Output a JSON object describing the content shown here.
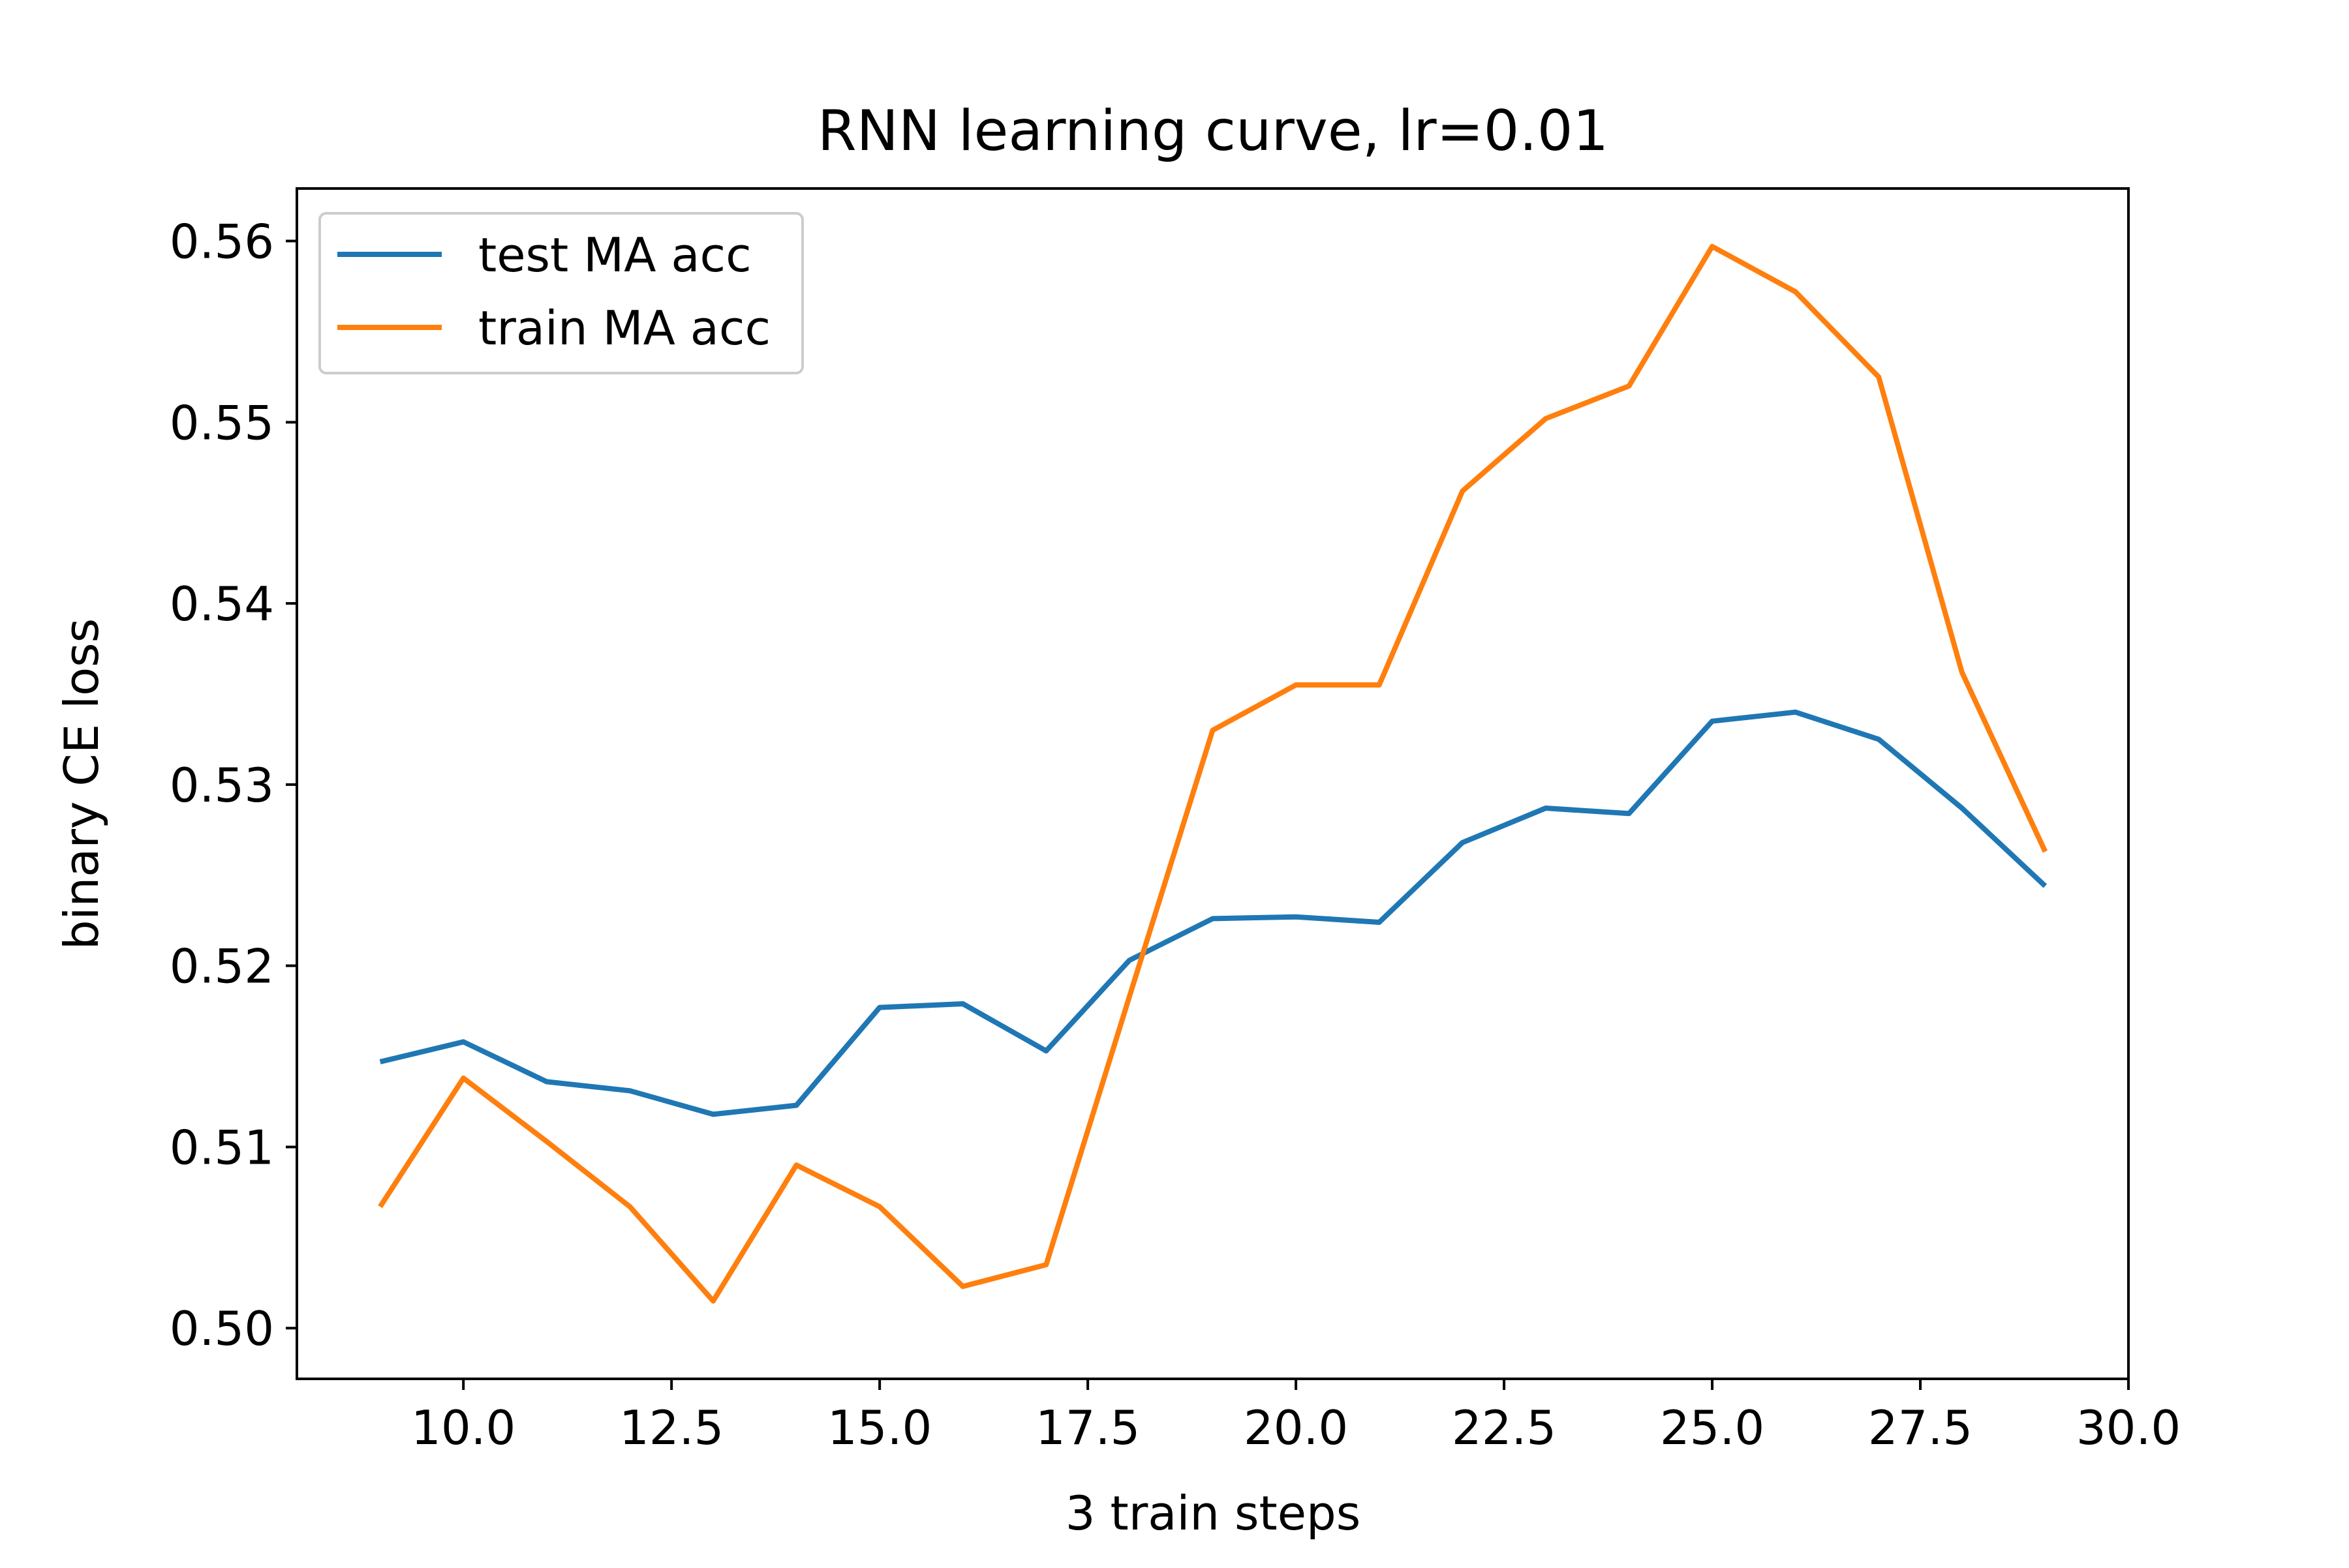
{
  "chart_data": {
    "type": "line",
    "title": "RNN learning curve, lr=0.01",
    "xlabel": "3 train steps",
    "ylabel": "binary CE loss",
    "xlim": [
      8.0,
      30.0
    ],
    "ylim": [
      0.4972,
      0.5629
    ],
    "xticks": [
      10.0,
      12.5,
      15.0,
      17.5,
      20.0,
      22.5,
      25.0,
      27.5,
      30.0
    ],
    "xtick_labels": [
      "10.0",
      "12.5",
      "15.0",
      "17.5",
      "20.0",
      "22.5",
      "25.0",
      "27.5",
      "30.0"
    ],
    "yticks": [
      0.5,
      0.51,
      0.52,
      0.53,
      0.54,
      0.55,
      0.56
    ],
    "ytick_labels": [
      "0.50",
      "0.51",
      "0.52",
      "0.53",
      "0.54",
      "0.55",
      "0.56"
    ],
    "grid": false,
    "legend_position": "upper-left",
    "x": [
      9,
      10,
      11,
      12,
      13,
      14,
      15,
      16,
      17,
      18,
      19,
      20,
      21,
      22,
      23,
      24,
      25,
      26,
      27,
      28,
      29
    ],
    "series": [
      {
        "name": "test MA acc",
        "color": "#1f77b4",
        "values": [
          0.5147,
          0.5158,
          0.5136,
          0.5131,
          0.5118,
          0.5123,
          0.5177,
          0.5179,
          0.5153,
          0.5203,
          0.5226,
          0.5227,
          0.5224,
          0.5268,
          0.5287,
          0.5284,
          0.5335,
          0.534,
          0.5325,
          0.5287,
          0.5244
        ]
      },
      {
        "name": "train MA acc",
        "color": "#ff7f0e",
        "values": [
          0.5067,
          0.5138,
          0.5103,
          0.5067,
          0.5015,
          0.509,
          0.5067,
          0.5023,
          0.5035,
          0.5183,
          0.533,
          0.5355,
          0.5355,
          0.5462,
          0.5502,
          0.552,
          0.5597,
          0.5572,
          0.5525,
          0.5362,
          0.5263
        ]
      }
    ]
  }
}
